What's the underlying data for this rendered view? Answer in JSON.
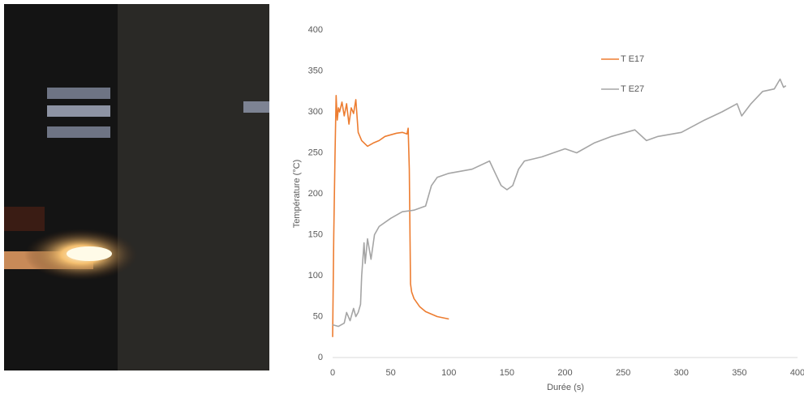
{
  "chart_data": {
    "type": "line",
    "x_label": "Durée (s)",
    "y_label": "Température (°C)",
    "xlim": [
      0,
      400
    ],
    "xticks": [
      0,
      50,
      100,
      150,
      200,
      250,
      300,
      350,
      400
    ],
    "ylim": [
      0,
      400
    ],
    "yticks": [
      0,
      50,
      100,
      150,
      200,
      250,
      300,
      350,
      400
    ],
    "grid": false,
    "legend": "upper right",
    "series": [
      {
        "name": "T E17",
        "color": "#ed7d31",
        "x": [
          0,
          1,
          2,
          3,
          4,
          5,
          6,
          8,
          10,
          12,
          14,
          16,
          18,
          20,
          22,
          25,
          30,
          35,
          40,
          45,
          50,
          55,
          60,
          64,
          65,
          66,
          67,
          68,
          70,
          75,
          80,
          90,
          100
        ],
        "values": [
          25,
          150,
          245,
          320,
          290,
          305,
          300,
          312,
          295,
          310,
          285,
          305,
          298,
          315,
          275,
          265,
          258,
          262,
          265,
          270,
          272,
          274,
          275,
          273,
          280,
          230,
          90,
          80,
          72,
          62,
          56,
          50,
          47
        ]
      },
      {
        "name": "T E27",
        "color": "#a5a5a5",
        "x": [
          0,
          5,
          10,
          12,
          15,
          18,
          20,
          22,
          24,
          25,
          27,
          28,
          30,
          33,
          36,
          40,
          50,
          60,
          70,
          80,
          85,
          90,
          100,
          120,
          135,
          140,
          145,
          150,
          155,
          160,
          165,
          180,
          200,
          210,
          225,
          240,
          260,
          270,
          280,
          300,
          320,
          335,
          348,
          352,
          360,
          370,
          380,
          385,
          388,
          390
        ],
        "values": [
          40,
          38,
          42,
          55,
          45,
          60,
          50,
          55,
          65,
          100,
          140,
          115,
          145,
          120,
          150,
          160,
          170,
          178,
          180,
          185,
          210,
          220,
          225,
          230,
          240,
          225,
          210,
          205,
          210,
          230,
          240,
          245,
          255,
          250,
          262,
          270,
          278,
          265,
          270,
          275,
          290,
          300,
          310,
          295,
          310,
          325,
          328,
          340,
          330,
          332
        ]
      }
    ]
  }
}
